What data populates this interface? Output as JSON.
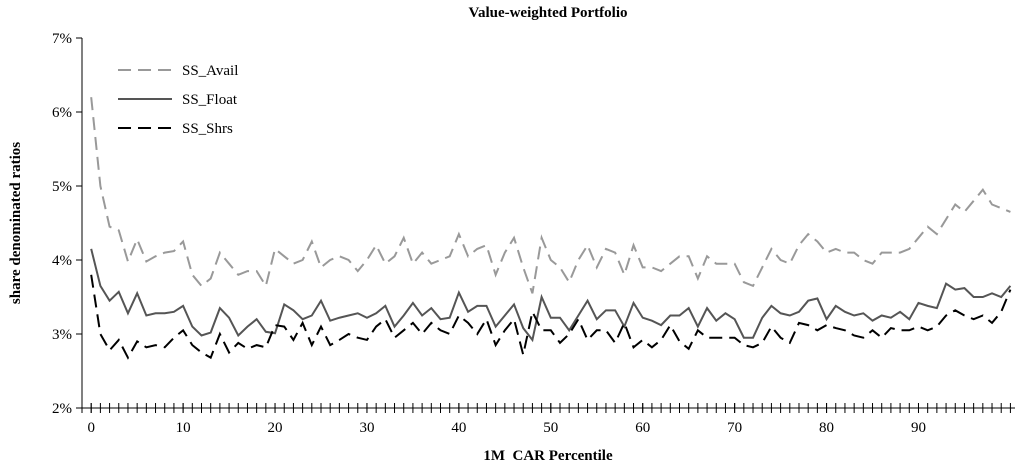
{
  "chart_data": {
    "type": "line",
    "title": "Value-weighted Portfolio",
    "x_label": "1M  CAR Percentile",
    "y_label": "share denominated ratios",
    "x": [
      0,
      1,
      2,
      3,
      4,
      5,
      6,
      7,
      8,
      9,
      10,
      11,
      12,
      13,
      14,
      15,
      16,
      17,
      18,
      19,
      20,
      21,
      22,
      23,
      24,
      25,
      26,
      27,
      28,
      29,
      30,
      31,
      32,
      33,
      34,
      35,
      36,
      37,
      38,
      39,
      40,
      41,
      42,
      43,
      44,
      45,
      46,
      47,
      48,
      49,
      50,
      51,
      52,
      53,
      54,
      55,
      56,
      57,
      58,
      59,
      60,
      61,
      62,
      63,
      64,
      65,
      66,
      67,
      68,
      69,
      70,
      71,
      72,
      73,
      74,
      75,
      76,
      77,
      78,
      79,
      80,
      81,
      82,
      83,
      84,
      85,
      86,
      87,
      88,
      89,
      90,
      91,
      92,
      93,
      94,
      95,
      96,
      97,
      98,
      99,
      100
    ],
    "xlim": [
      -1,
      100.5
    ],
    "xticks": [
      0,
      10,
      20,
      30,
      40,
      50,
      60,
      70,
      80,
      90
    ],
    "x_minor_step": 1,
    "ylim": [
      2,
      7
    ],
    "yticks": [
      {
        "value": 2,
        "label": "2%"
      },
      {
        "value": 3,
        "label": "3%"
      },
      {
        "value": 4,
        "label": "4%"
      },
      {
        "value": 5,
        "label": "5%"
      },
      {
        "value": 6,
        "label": "6%"
      },
      {
        "value": 7,
        "label": "7%"
      }
    ],
    "grid": false,
    "legend": "upper left",
    "series": [
      {
        "name": "SS_Avail",
        "color": "#999999",
        "dash": "dashed",
        "values": [
          6.2,
          5.0,
          4.45,
          4.4,
          3.98,
          4.28,
          3.98,
          4.05,
          4.1,
          4.12,
          4.25,
          3.8,
          3.65,
          3.75,
          4.1,
          3.95,
          3.8,
          3.85,
          3.85,
          3.65,
          4.15,
          4.05,
          3.95,
          4.0,
          4.25,
          3.9,
          4.0,
          4.05,
          4.0,
          3.85,
          4.0,
          4.2,
          3.95,
          4.05,
          4.3,
          3.95,
          4.1,
          3.95,
          4.0,
          4.05,
          4.35,
          4.05,
          4.15,
          4.2,
          3.8,
          4.1,
          4.3,
          3.9,
          3.55,
          4.3,
          4.0,
          3.9,
          3.7,
          4.0,
          4.2,
          3.9,
          4.15,
          4.1,
          3.8,
          4.2,
          3.9,
          3.9,
          3.85,
          3.95,
          4.05,
          4.05,
          3.75,
          4.05,
          3.95,
          3.95,
          3.95,
          3.7,
          3.65,
          3.9,
          4.15,
          4.0,
          3.95,
          4.2,
          4.35,
          4.25,
          4.1,
          4.15,
          4.1,
          4.1,
          4.0,
          3.95,
          4.1,
          4.1,
          4.1,
          4.15,
          4.3,
          4.45,
          4.35,
          4.55,
          4.75,
          4.65,
          4.8,
          4.95,
          4.75,
          4.7,
          4.65
        ]
      },
      {
        "name": "SS_Float",
        "color": "#555555",
        "dash": "solid",
        "values": [
          4.15,
          3.65,
          3.45,
          3.57,
          3.28,
          3.55,
          3.25,
          3.28,
          3.28,
          3.3,
          3.38,
          3.1,
          2.98,
          3.02,
          3.35,
          3.22,
          2.98,
          3.1,
          3.2,
          3.03,
          3.01,
          3.4,
          3.32,
          3.2,
          3.25,
          3.45,
          3.18,
          3.22,
          3.25,
          3.28,
          3.22,
          3.28,
          3.38,
          3.1,
          3.25,
          3.42,
          3.25,
          3.35,
          3.2,
          3.22,
          3.56,
          3.3,
          3.38,
          3.38,
          3.1,
          3.25,
          3.4,
          3.08,
          2.92,
          3.5,
          3.22,
          3.22,
          3.05,
          3.25,
          3.45,
          3.2,
          3.32,
          3.32,
          3.1,
          3.42,
          3.22,
          3.18,
          3.12,
          3.25,
          3.25,
          3.35,
          3.1,
          3.35,
          3.18,
          3.28,
          3.2,
          2.95,
          2.95,
          3.22,
          3.38,
          3.28,
          3.25,
          3.3,
          3.45,
          3.48,
          3.2,
          3.38,
          3.3,
          3.25,
          3.28,
          3.18,
          3.25,
          3.22,
          3.3,
          3.2,
          3.42,
          3.38,
          3.35,
          3.68,
          3.6,
          3.62,
          3.5,
          3.5,
          3.55,
          3.5,
          3.65
        ]
      },
      {
        "name": "SS_Shrs",
        "color": "#000000",
        "dash": "dashed",
        "values": [
          3.8,
          3.0,
          2.78,
          2.92,
          2.68,
          2.9,
          2.82,
          2.85,
          2.82,
          2.95,
          3.05,
          2.85,
          2.75,
          2.68,
          3.0,
          2.75,
          2.88,
          2.8,
          2.85,
          2.82,
          3.12,
          3.1,
          2.92,
          3.15,
          2.85,
          3.1,
          2.85,
          2.92,
          3.0,
          2.95,
          2.92,
          3.1,
          3.2,
          2.95,
          3.05,
          3.15,
          3.0,
          3.15,
          3.05,
          3.0,
          3.25,
          3.15,
          3.0,
          3.2,
          2.85,
          3.05,
          3.2,
          2.72,
          3.3,
          3.05,
          3.05,
          2.88,
          3.0,
          3.2,
          2.92,
          3.05,
          3.05,
          2.88,
          3.15,
          2.82,
          2.92,
          2.82,
          2.92,
          3.12,
          2.9,
          2.8,
          3.05,
          2.95,
          2.95,
          2.95,
          2.95,
          2.85,
          2.82,
          2.88,
          3.1,
          2.95,
          2.88,
          3.15,
          3.12,
          3.05,
          3.12,
          3.08,
          3.05,
          2.98,
          2.95,
          3.05,
          2.95,
          3.08,
          3.05,
          3.05,
          3.1,
          3.05,
          3.1,
          3.25,
          3.32,
          3.25,
          3.2,
          3.25,
          3.15,
          3.3,
          3.6
        ]
      }
    ]
  }
}
